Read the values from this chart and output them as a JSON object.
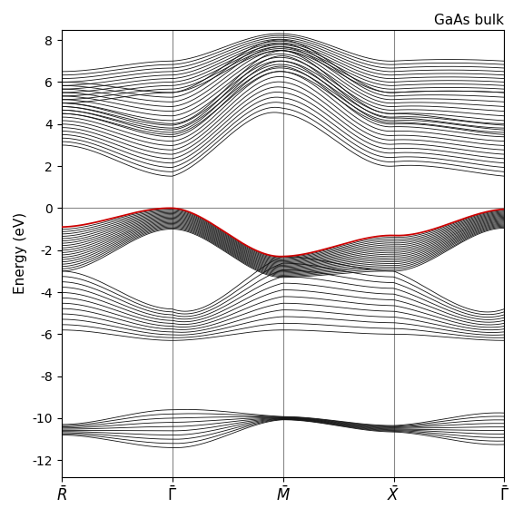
{
  "title": "GaAs bulk",
  "ylabel": "Energy (eV)",
  "ylim": [
    -12.8,
    8.5
  ],
  "yticks": [
    -12,
    -10,
    -8,
    -6,
    -4,
    -2,
    0,
    2,
    4,
    6,
    8
  ],
  "n_kpoints": 300,
  "p": 10,
  "background_color": "#ffffff",
  "band_color": "#111111",
  "red_band_color": "#cc0000",
  "linewidth": 0.6,
  "red_linewidth": 1.3,
  "vline_color": "#888888",
  "hline_color": "#888888",
  "vline_lw": 0.8,
  "hline_lw": 0.8
}
